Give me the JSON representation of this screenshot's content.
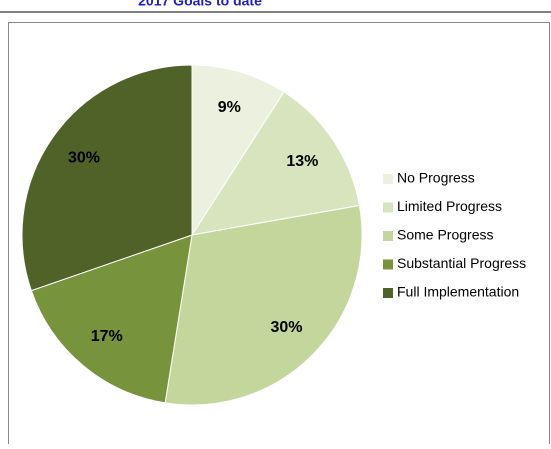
{
  "chart_data": {
    "type": "pie",
    "title": "2017 Goals to date",
    "categories": [
      "No Progress",
      "Limited Progress",
      "Some Progress",
      "Substantial Progress",
      "Full Implementation"
    ],
    "values": [
      9,
      13,
      30,
      17,
      30
    ],
    "value_labels": [
      "9%",
      "13%",
      "30%",
      "17%",
      "30%"
    ],
    "colors": [
      "#ebf1de",
      "#d7e4bd",
      "#c3d69b",
      "#77933c",
      "#4f6228"
    ],
    "legend": "right"
  }
}
